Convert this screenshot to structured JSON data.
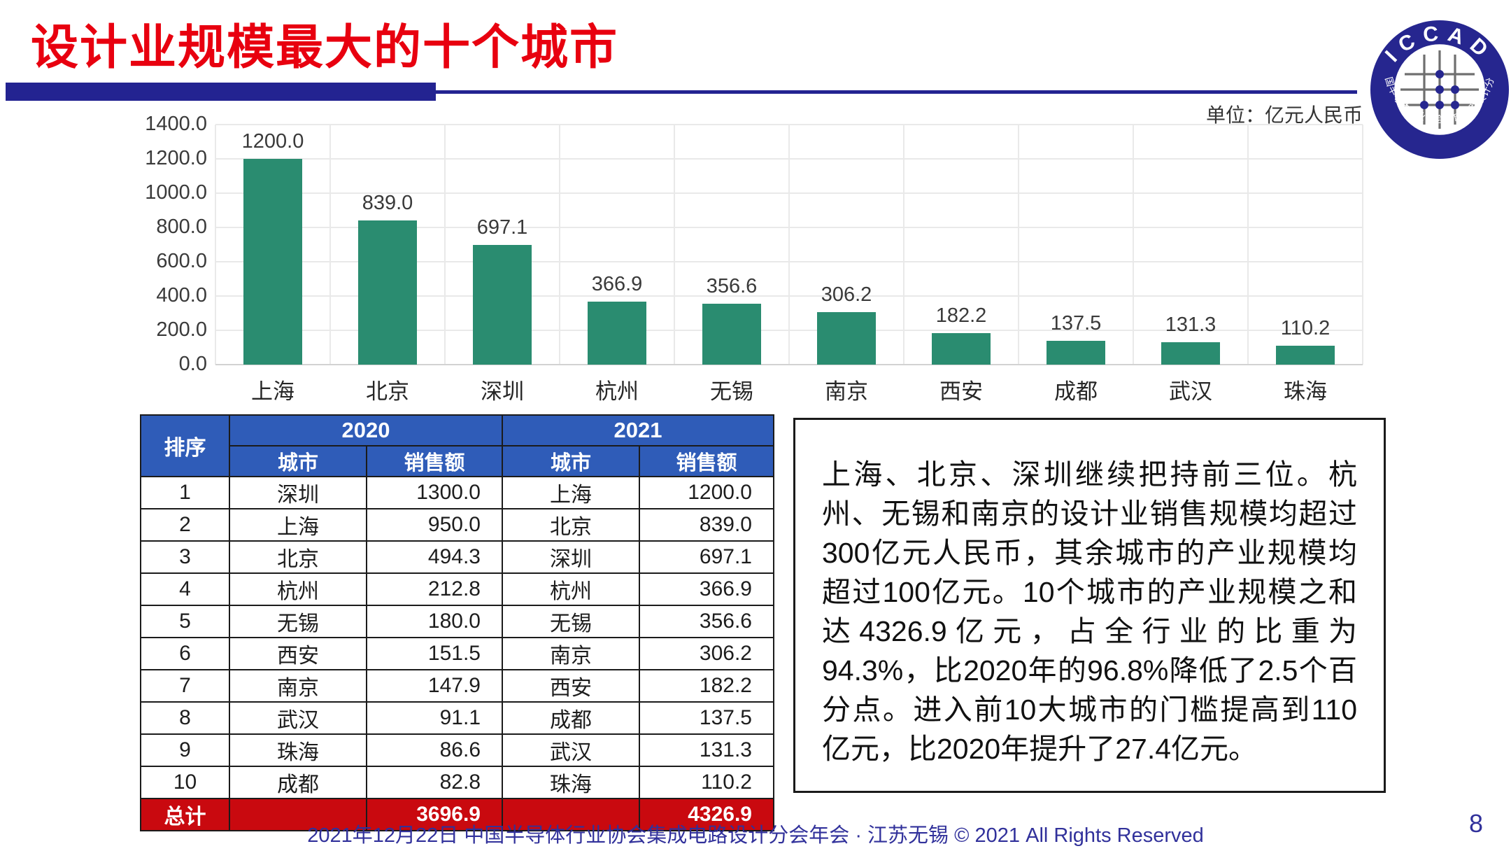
{
  "header": {
    "title": "设计业规模最大的十个城市"
  },
  "logo": {
    "top_text": "ICCAD",
    "bottom_text": "中国半导体行业协会集成电路设计分会"
  },
  "chart_data": {
    "type": "bar",
    "title": "",
    "unit_label": "单位：亿元人民币",
    "categories": [
      "上海",
      "北京",
      "深圳",
      "杭州",
      "无锡",
      "南京",
      "西安",
      "成都",
      "武汉",
      "珠海"
    ],
    "values": [
      1200.0,
      839.0,
      697.1,
      366.9,
      356.6,
      306.2,
      182.2,
      137.5,
      131.3,
      110.2
    ],
    "value_labels": [
      "1200.0",
      "839.0",
      "697.1",
      "366.9",
      "356.6",
      "306.2",
      "182.2",
      "137.5",
      "131.3",
      "110.2"
    ],
    "xlabel": "",
    "ylabel": "",
    "ylim": [
      0,
      1400
    ],
    "yticks": [
      "1400.0",
      "1200.0",
      "1000.0",
      "800.0",
      "600.0",
      "400.0",
      "200.0",
      "0.0"
    ],
    "grid": true,
    "legend": "none",
    "bar_color": "#2a8c70"
  },
  "table": {
    "header": {
      "rank": "排序",
      "year_2020": "2020",
      "year_2021": "2021",
      "city": "城市",
      "sales": "销售额"
    },
    "rows": [
      {
        "rank": "1",
        "city_2020": "深圳",
        "sales_2020": "1300.0",
        "city_2021": "上海",
        "sales_2021": "1200.0"
      },
      {
        "rank": "2",
        "city_2020": "上海",
        "sales_2020": "950.0",
        "city_2021": "北京",
        "sales_2021": "839.0"
      },
      {
        "rank": "3",
        "city_2020": "北京",
        "sales_2020": "494.3",
        "city_2021": "深圳",
        "sales_2021": "697.1"
      },
      {
        "rank": "4",
        "city_2020": "杭州",
        "sales_2020": "212.8",
        "city_2021": "杭州",
        "sales_2021": "366.9"
      },
      {
        "rank": "5",
        "city_2020": "无锡",
        "sales_2020": "180.0",
        "city_2021": "无锡",
        "sales_2021": "356.6"
      },
      {
        "rank": "6",
        "city_2020": "西安",
        "sales_2020": "151.5",
        "city_2021": "南京",
        "sales_2021": "306.2"
      },
      {
        "rank": "7",
        "city_2020": "南京",
        "sales_2020": "147.9",
        "city_2021": "西安",
        "sales_2021": "182.2"
      },
      {
        "rank": "8",
        "city_2020": "武汉",
        "sales_2020": "91.1",
        "city_2021": "成都",
        "sales_2021": "137.5"
      },
      {
        "rank": "9",
        "city_2020": "珠海",
        "sales_2020": "86.6",
        "city_2021": "武汉",
        "sales_2021": "131.3"
      },
      {
        "rank": "10",
        "city_2020": "成都",
        "sales_2020": "82.8",
        "city_2021": "珠海",
        "sales_2021": "110.2"
      }
    ],
    "total": {
      "label": "总计",
      "sales_2020": "3696.9",
      "sales_2021": "4326.9"
    }
  },
  "analysis": {
    "text": "上海、北京、深圳继续把持前三位。杭州、无锡和南京的设计业销售规模均超过300亿元人民币，其余城市的产业规模均超过100亿元。10个城市的产业规模之和达4326.9亿元，占全行业的比重为94.3%，比2020年的96.8%降低了2.5个百分点。进入前10大城市的门槛提高到110亿元，比2020年提升了27.4亿元。"
  },
  "footer": {
    "text": "2021年12月22日 中国半导体行业协会集成电路设计分会年会 · 江苏无锡 © 2021 All Rights Reserved",
    "page": "8"
  },
  "colors": {
    "title_red": "#e8000f",
    "divider_navy": "#232391",
    "bar_green": "#2a8c70",
    "table_header_blue": "#2f5cb8",
    "table_total_red": "#c9090f",
    "footer_navy": "#31319b"
  }
}
